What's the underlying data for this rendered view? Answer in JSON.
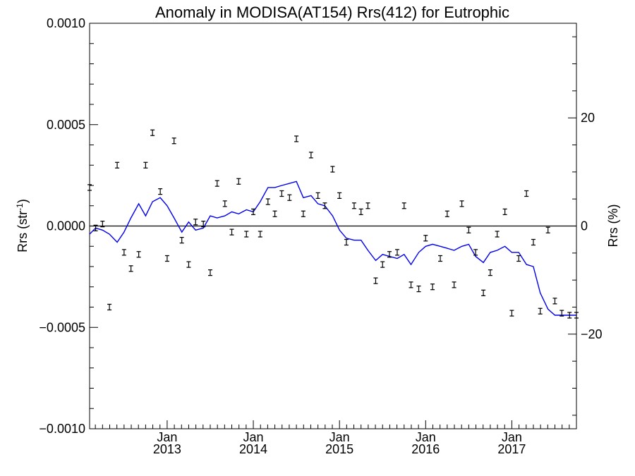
{
  "chart_data": {
    "type": "line",
    "title": "Anomaly in MODISA(AT154) Rrs(412) for Eutrophic",
    "ylabel": "Rrs (str⁻¹)",
    "y2label": "Rrs (%)",
    "ylim": [
      -0.001,
      0.001
    ],
    "y2lim": [
      -37.5,
      37.5
    ],
    "yticks": [
      {
        "value": 0.001,
        "label": "0.0010"
      },
      {
        "value": 0.0005,
        "label": "0.0005"
      },
      {
        "value": 0.0,
        "label": "0.0000"
      },
      {
        "value": -0.0005,
        "label": "−0.0005"
      },
      {
        "value": -0.001,
        "label": "−0.0010"
      }
    ],
    "y2ticks": [
      {
        "value": 20,
        "label": "20"
      },
      {
        "value": 0,
        "label": "0"
      },
      {
        "value": -20,
        "label": "−20"
      }
    ],
    "xlim": [
      2012.1,
      2017.75
    ],
    "xticks": [
      {
        "value": 2013.0,
        "month": "Jan",
        "year": "2013"
      },
      {
        "value": 2014.0,
        "month": "Jan",
        "year": "2014"
      },
      {
        "value": 2015.0,
        "month": "Jan",
        "year": "2015"
      },
      {
        "value": 2016.0,
        "month": "Jan",
        "year": "2016"
      },
      {
        "value": 2017.0,
        "month": "Jan",
        "year": "2017"
      }
    ],
    "grid": false,
    "reference_line": 0.0,
    "line_color": "#0000ee",
    "marker_color": "#000000",
    "series": [
      {
        "type": "line",
        "x": [
          2012.1,
          2012.17,
          2012.25,
          2012.33,
          2012.42,
          2012.5,
          2012.58,
          2012.67,
          2012.75,
          2012.83,
          2012.92,
          2013.0,
          2013.08,
          2013.17,
          2013.25,
          2013.33,
          2013.42,
          2013.5,
          2013.58,
          2013.67,
          2013.75,
          2013.83,
          2013.92,
          2014.0,
          2014.08,
          2014.17,
          2014.25,
          2014.33,
          2014.42,
          2014.5,
          2014.58,
          2014.67,
          2014.75,
          2014.83,
          2014.92,
          2015.0,
          2015.08,
          2015.17,
          2015.25,
          2015.33,
          2015.42,
          2015.5,
          2015.58,
          2015.67,
          2015.75,
          2015.83,
          2015.92,
          2016.0,
          2016.08,
          2016.17,
          2016.25,
          2016.33,
          2016.42,
          2016.5,
          2016.58,
          2016.67,
          2016.75,
          2016.83,
          2016.92,
          2017.0,
          2017.08,
          2017.17,
          2017.25,
          2017.33,
          2017.42,
          2017.5,
          2017.58,
          2017.67,
          2017.75
        ],
        "y": [
          -4e-05,
          -1e-05,
          -2e-05,
          -4e-05,
          -8e-05,
          -3e-05,
          4e-05,
          0.00011,
          5e-05,
          0.00012,
          0.00014,
          0.0001,
          4e-05,
          -3e-05,
          2e-05,
          -2e-05,
          -1e-05,
          5e-05,
          4e-05,
          5e-05,
          7e-05,
          6e-05,
          8e-05,
          7e-05,
          0.00012,
          0.00019,
          0.00019,
          0.0002,
          0.00021,
          0.00022,
          0.00014,
          0.00015,
          0.00011,
          0.0001,
          5e-05,
          -2e-05,
          -6e-05,
          -7e-05,
          -7e-05,
          -0.00012,
          -0.00017,
          -0.00014,
          -0.00015,
          -0.00016,
          -0.00014,
          -0.00019,
          -0.00013,
          -0.0001,
          -9e-05,
          -0.0001,
          -0.00011,
          -0.00012,
          -0.0001,
          -9e-05,
          -0.00015,
          -0.00018,
          -0.00013,
          -0.00012,
          -0.0001,
          -0.00013,
          -0.00013,
          -0.00019,
          -0.0002,
          -0.00033,
          -0.00041,
          -0.00044,
          -0.00044,
          -0.00044,
          -0.00044
        ]
      },
      {
        "type": "scatter",
        "x": [
          2012.1,
          2012.17,
          2012.25,
          2012.33,
          2012.42,
          2012.5,
          2012.58,
          2012.67,
          2012.75,
          2012.83,
          2012.92,
          2013.0,
          2013.08,
          2013.17,
          2013.25,
          2013.33,
          2013.42,
          2013.5,
          2013.58,
          2013.67,
          2013.75,
          2013.83,
          2013.92,
          2014.0,
          2014.08,
          2014.17,
          2014.25,
          2014.33,
          2014.42,
          2014.5,
          2014.58,
          2014.67,
          2014.75,
          2014.83,
          2014.92,
          2015.0,
          2015.08,
          2015.17,
          2015.25,
          2015.33,
          2015.42,
          2015.5,
          2015.58,
          2015.67,
          2015.75,
          2015.83,
          2015.92,
          2016.0,
          2016.08,
          2016.17,
          2016.25,
          2016.33,
          2016.42,
          2016.5,
          2016.58,
          2016.67,
          2016.75,
          2016.83,
          2016.92,
          2017.0,
          2017.08,
          2017.17,
          2017.25,
          2017.33,
          2017.42,
          2017.5,
          2017.58,
          2017.67,
          2017.75
        ],
        "y": [
          0.00019,
          -1e-05,
          1e-05,
          -0.0004,
          0.0003,
          -0.00013,
          -0.00021,
          -0.00014,
          0.0003,
          0.00046,
          0.00017,
          -0.00016,
          0.00042,
          -7e-05,
          -0.00019,
          2e-05,
          1e-05,
          -0.00023,
          0.00021,
          0.00011,
          -3e-05,
          0.00022,
          -4e-05,
          7e-05,
          -4e-05,
          0.00012,
          6e-05,
          0.00016,
          0.00014,
          0.00043,
          6e-05,
          0.00035,
          0.00015,
          0.0001,
          0.00028,
          0.00015,
          -8e-05,
          0.0001,
          7e-05,
          0.0001,
          -0.00027,
          -0.00019,
          -0.00014,
          -0.00013,
          0.0001,
          -0.00029,
          -0.00031,
          -6e-05,
          -0.0003,
          -0.00016,
          6e-05,
          -0.00029,
          0.00011,
          -2e-05,
          -0.00013,
          -0.00033,
          -0.00023,
          -4e-05,
          7e-05,
          -0.00043,
          -0.00016,
          0.00016,
          -8e-05,
          -0.00042,
          -2e-05,
          -0.00037,
          -0.00043,
          -0.00044,
          -0.00044
        ]
      }
    ]
  }
}
